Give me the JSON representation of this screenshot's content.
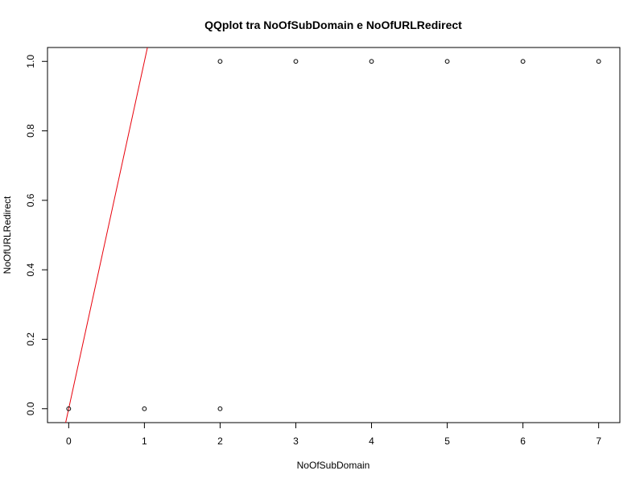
{
  "chart_data": {
    "type": "scatter",
    "title": "QQplot tra NoOfSubDomain e NoOfURLRedirect",
    "xlabel": "NoOfSubDomain",
    "ylabel": "NoOfURLRedirect",
    "xlim": [
      -0.28,
      7.28
    ],
    "ylim": [
      -0.04,
      1.04
    ],
    "x_ticks": [
      0,
      1,
      2,
      3,
      4,
      5,
      6,
      7
    ],
    "x_tick_labels": [
      "0",
      "1",
      "2",
      "3",
      "4",
      "5",
      "6",
      "7"
    ],
    "y_ticks": [
      0.0,
      0.2,
      0.4,
      0.6,
      0.8,
      1.0
    ],
    "y_tick_labels": [
      "0.0",
      "0.2",
      "0.4",
      "0.6",
      "0.8",
      "1.0"
    ],
    "grid": false,
    "points": [
      {
        "x": 0,
        "y": 0
      },
      {
        "x": 1,
        "y": 0
      },
      {
        "x": 2,
        "y": 0
      },
      {
        "x": 2,
        "y": 1
      },
      {
        "x": 3,
        "y": 1
      },
      {
        "x": 4,
        "y": 1
      },
      {
        "x": 5,
        "y": 1
      },
      {
        "x": 6,
        "y": 1
      },
      {
        "x": 7,
        "y": 1
      }
    ],
    "reference_line": {
      "intercept": 0,
      "slope": 1,
      "color": "#e8000b"
    },
    "point_color": "#000000"
  }
}
